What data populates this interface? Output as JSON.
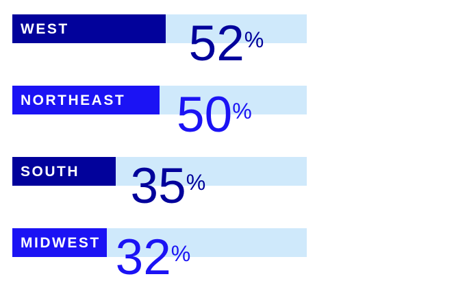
{
  "chart_data": {
    "type": "bar",
    "orientation": "horizontal",
    "title": "",
    "unit": "%",
    "categories": [
      "WEST",
      "NORTHEAST",
      "SOUTH",
      "MIDWEST"
    ],
    "values": [
      52,
      50,
      35,
      32
    ],
    "xlim": [
      0,
      100
    ],
    "grid": false,
    "legend": false,
    "colors": {
      "navy": "#02029b",
      "bright_blue": "#1b13f4",
      "track": "#cfe9fb",
      "label_text": "#ffffff"
    },
    "rows": [
      {
        "label": "WEST",
        "value": 52,
        "display": "52",
        "color": "#02029b"
      },
      {
        "label": "NORTHEAST",
        "value": 50,
        "display": "50",
        "color": "#1b13f4"
      },
      {
        "label": "SOUTH",
        "value": 35,
        "display": "35",
        "color": "#02029b"
      },
      {
        "label": "MIDWEST",
        "value": 32,
        "display": "32",
        "color": "#1b13f4"
      }
    ]
  }
}
